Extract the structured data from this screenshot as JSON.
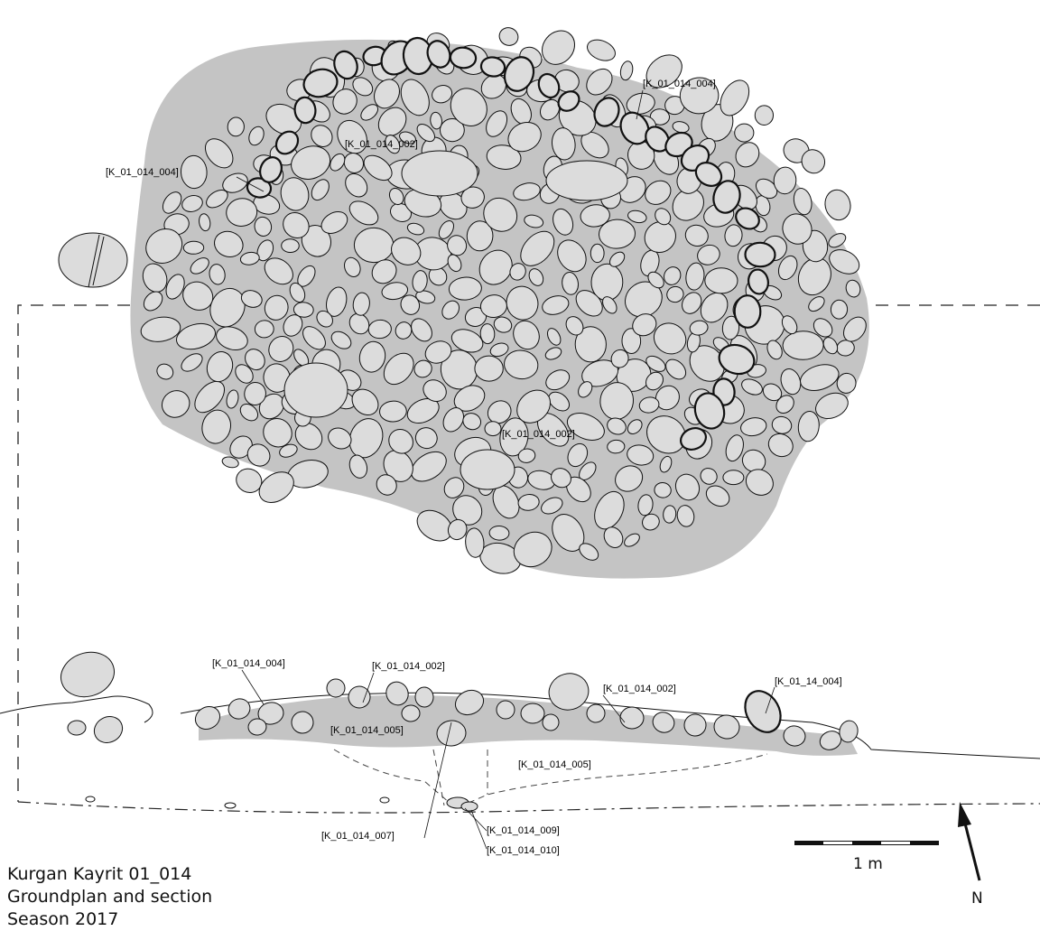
{
  "drawing": {
    "caption": {
      "line1": "Kurgan Kayrit 01_014",
      "line2": "Groundplan and section",
      "line3": "Season 2017"
    },
    "plan_labels": {
      "ring_nw": "[K_01_014_004]",
      "ring_ne": "[K_01_014_004]",
      "fill_top": "[K_01_014_002]",
      "fill_center": "[K_01_014_002]"
    },
    "section_labels": {
      "ring_w": "[K_01_014_004]",
      "fill_w": "[K_01_014_002]",
      "fill_e": "[K_01_014_002]",
      "ring_e": "[K_01_14_004]",
      "layer_w": "[K_01_014_005]",
      "layer_c": "[K_01_014_005]",
      "find_007": "[K_01_014_007]",
      "find_009": "[K_01_014_009]",
      "find_010": "[K_01_014_010]"
    },
    "scale_bar": {
      "label": "1 m"
    },
    "north_arrow": {
      "label": "N"
    },
    "colors": {
      "stone_fill": "#dcdcdc",
      "soil_fill": "#c4c4c4",
      "outline": "#111111"
    }
  }
}
